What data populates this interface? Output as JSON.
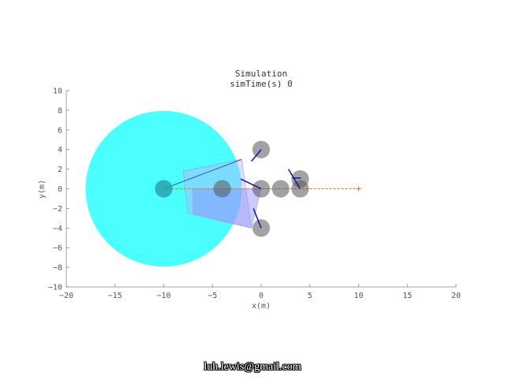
{
  "chart_data": {
    "type": "scatter",
    "title": "Simulation",
    "subtitle": "simTime(s) 0",
    "xlabel": "x(m)",
    "ylabel": "y(m)",
    "xlim": [
      -20,
      20
    ],
    "ylim": [
      -10,
      10
    ],
    "xticks": [
      -20,
      -15,
      -10,
      -5,
      0,
      5,
      10,
      15,
      20
    ],
    "yticks": [
      -10,
      -8,
      -6,
      -4,
      -2,
      0,
      2,
      4,
      6,
      8,
      10
    ],
    "xtick_labels": [
      "−20",
      "−15",
      "−10",
      "−5",
      "0",
      "5",
      "10",
      "15",
      "20"
    ],
    "ytick_labels": [
      "−10",
      "−8",
      "−6",
      "−4",
      "−2",
      "0",
      "2",
      "4",
      "6",
      "8",
      "10"
    ],
    "grid": false,
    "robot": {
      "x": -10,
      "y": 0,
      "radius": 0.6,
      "sensor_range": 8,
      "color": "#00ffff"
    },
    "goal": {
      "x": 10,
      "y": 0,
      "color": "#e07020"
    },
    "path_line": {
      "from": [
        -10,
        0
      ],
      "to": [
        10,
        0
      ]
    },
    "ray": {
      "from": [
        -10,
        0
      ],
      "to": [
        -2,
        3
      ]
    },
    "agents": [
      {
        "x": 0,
        "y": 4,
        "radius": 0.9,
        "heading": [
          -1,
          -1.2
        ]
      },
      {
        "x": 0,
        "y": 0,
        "radius": 0.9,
        "heading": [
          -2.1,
          1
        ]
      },
      {
        "x": 0,
        "y": -4,
        "radius": 0.9,
        "heading": [
          -0.8,
          2
        ]
      },
      {
        "x": 2,
        "y": 0,
        "radius": 0.9
      },
      {
        "x": 4,
        "y": 1,
        "radius": 0.9
      },
      {
        "x": 4,
        "y": 0,
        "radius": 0.9,
        "heading": [
          -1.2,
          2
        ]
      },
      {
        "x": -4,
        "y": 0,
        "radius": 0.9
      }
    ],
    "extra_headings": [
      {
        "from": [
          3.2,
          1.1
        ],
        "to": [
          4.1,
          1.1
        ]
      }
    ],
    "fov_regions": [
      {
        "points": [
          [
            -8,
            1.8
          ],
          [
            -2,
            3
          ],
          [
            -1,
            -4
          ],
          [
            -7.5,
            -2.5
          ]
        ],
        "color": "#b4b4ff"
      },
      {
        "points": [
          [
            -7,
            0
          ],
          [
            0,
            0
          ],
          [
            -1,
            -4
          ],
          [
            -7,
            -2.5
          ]
        ],
        "color": "#8c8cff"
      }
    ]
  },
  "watermark": "luh.lewis@gmail.com"
}
